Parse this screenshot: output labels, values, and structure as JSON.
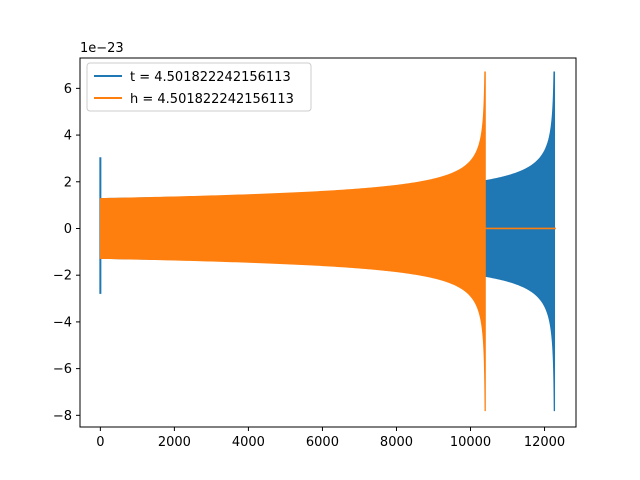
{
  "chart_data": {
    "type": "line",
    "axes": {
      "xlim": [
        -550,
        12850
      ],
      "ylim": [
        -8.5,
        7.3
      ],
      "x_ticks": [
        0,
        2000,
        4000,
        6000,
        8000,
        10000,
        12000
      ],
      "x_tick_labels": [
        "0",
        "2000",
        "4000",
        "6000",
        "8000",
        "10000",
        "12000"
      ],
      "y_ticks": [
        -8,
        -6,
        -4,
        -2,
        0,
        2,
        4,
        6
      ],
      "y_tick_labels": [
        "−8",
        "−6",
        "−4",
        "−2",
        "0",
        "2",
        "4",
        "6"
      ],
      "y_offset_text": "1e−23",
      "grid": false
    },
    "legend": {
      "placement": "upper-left",
      "entries": [
        {
          "label": "t = 4.501822242156113",
          "color": "#1f77b4"
        },
        {
          "label": "h = 4.501822242156113",
          "color": "#ff7f0e"
        }
      ]
    },
    "series": [
      {
        "name": "t = 4.501822242156113",
        "color": "#1f77b4",
        "glitch": {
          "x": 0,
          "ymin": -2.8,
          "ymax": 3.05
        },
        "envelope": {
          "x_start": 0,
          "x_end": 12270,
          "x_peak": 12270,
          "amp_start": 1.28,
          "amp_mid": 1.93,
          "x_mid": 10400,
          "peak_max": 6.7,
          "peak_min": -7.8
        },
        "tail": {
          "x_start": 12270,
          "x_end": 12300,
          "y": 0
        }
      },
      {
        "name": "h = 4.501822242156113",
        "color": "#ff7f0e",
        "envelope": {
          "x_start": 0,
          "x_end": 10400,
          "x_peak": 10400,
          "amp_start": 1.28,
          "amp_mid": 1.93,
          "x_mid": 10400,
          "peak_max": 6.7,
          "peak_min": -7.8
        },
        "tail": {
          "x_start": 10400,
          "x_end": 12300,
          "y": 0
        }
      }
    ]
  }
}
